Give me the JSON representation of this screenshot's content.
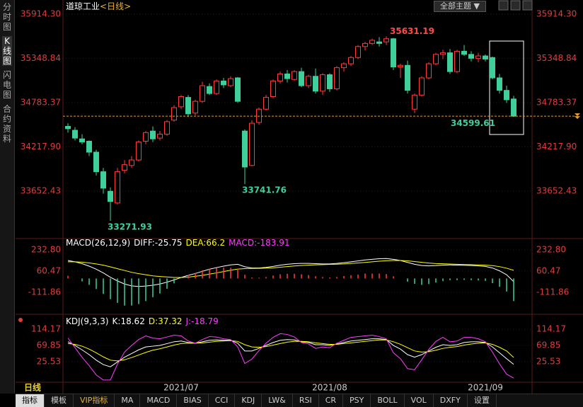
{
  "sidebar": [
    "分时图",
    "K线图",
    "闪电图",
    "合约资料"
  ],
  "header": {
    "symbol": "道琼工业",
    "period": "<日线>",
    "theme_button": "全部主题"
  },
  "footer": {
    "period_tab": "日线",
    "tabs": [
      "指标",
      "模板",
      "VIP指标",
      "MA",
      "MACD",
      "BIAS",
      "CCI",
      "KDJ",
      "LW&",
      "RSI",
      "CR",
      "PSY",
      "BOLL",
      "VOL",
      "DXFY",
      "设置"
    ]
  },
  "chart_data": [
    {
      "type": "candlestick",
      "categories": [
        null,
        null,
        null,
        null,
        null,
        null,
        null,
        null,
        null,
        null,
        null,
        null,
        null,
        null,
        null,
        null,
        "2021/07",
        null,
        null,
        null,
        null,
        null,
        null,
        null,
        null,
        null,
        null,
        null,
        null,
        null,
        null,
        null,
        null,
        null,
        null,
        null,
        null,
        "2021/08",
        null,
        null,
        null,
        null,
        null,
        null,
        null,
        null,
        null,
        null,
        null,
        null,
        null,
        null,
        null,
        null,
        null,
        null,
        null,
        null,
        null,
        "2021/09",
        null,
        null,
        null,
        null
      ],
      "open": [
        34480,
        34430,
        34320,
        34290,
        34150,
        33900,
        33650,
        33500,
        33920,
        33980,
        34050,
        34290,
        34420,
        34330,
        34380,
        34560,
        34730,
        34850,
        34650,
        34800,
        34990,
        34900,
        35060,
        35000,
        35100,
        34420,
        33980,
        34530,
        34700,
        34860,
        35060,
        35150,
        35080,
        35180,
        35000,
        35120,
        34930,
        35140,
        34960,
        35230,
        35280,
        35360,
        35500,
        35540,
        35560,
        35560,
        35600,
        35240,
        35260,
        34700,
        34880,
        35100,
        35280,
        35400,
        35420,
        35180,
        35440,
        35400,
        35350,
        35380,
        35360,
        35100,
        34940,
        34830
      ],
      "high": [
        34520,
        34470,
        34380,
        34300,
        34180,
        33950,
        33700,
        33950,
        34050,
        34100,
        34300,
        34420,
        34480,
        34420,
        34560,
        34750,
        34880,
        34880,
        34820,
        35050,
        35030,
        35080,
        35100,
        35120,
        35110,
        34440,
        34560,
        34720,
        34880,
        35080,
        35180,
        35200,
        35200,
        35230,
        35140,
        35220,
        35160,
        35160,
        35250,
        35300,
        35380,
        35520,
        35560,
        35600,
        35620,
        35631.19,
        35610,
        35280,
        35320,
        34900,
        35120,
        35300,
        35420,
        35460,
        35470,
        35460,
        35520,
        35440,
        35420,
        35400,
        35370,
        35150,
        35000,
        34870
      ],
      "low": [
        34400,
        34300,
        34250,
        34100,
        33850,
        33620,
        33271.93,
        33480,
        33880,
        33950,
        34030,
        34250,
        34280,
        34300,
        34360,
        34540,
        34700,
        34600,
        34620,
        34780,
        34880,
        34880,
        34970,
        34980,
        34780,
        33741.76,
        33970,
        34500,
        34680,
        34840,
        35030,
        35040,
        35060,
        34980,
        34970,
        34900,
        34880,
        34920,
        34940,
        35180,
        35250,
        35340,
        35450,
        35520,
        35500,
        35520,
        35200,
        35100,
        34900,
        34650,
        34860,
        35080,
        35260,
        35340,
        35150,
        35160,
        35380,
        35310,
        35300,
        35310,
        35080,
        34900,
        34780,
        34599.61
      ],
      "close": [
        34450,
        34330,
        34280,
        34150,
        33900,
        33690,
        33520,
        33900,
        33990,
        34050,
        34280,
        34400,
        34320,
        34380,
        34540,
        34720,
        34860,
        34640,
        34800,
        35000,
        34900,
        35060,
        35010,
        35090,
        34800,
        33960,
        34520,
        34700,
        34850,
        35060,
        35150,
        35090,
        35180,
        35000,
        35120,
        34930,
        35140,
        34960,
        35230,
        35280,
        35360,
        35500,
        35540,
        35580,
        35540,
        35600,
        35240,
        35260,
        34940,
        34880,
        35100,
        35280,
        35400,
        35420,
        35180,
        35440,
        35400,
        35350,
        35380,
        35340,
        35100,
        34940,
        34820,
        34610
      ],
      "up_color": "#ff3c3c",
      "down_color": "#3fcf9b",
      "last_price_color": "#e8a030",
      "ylim": [
        33064,
        36050
      ],
      "yticks": [
        {
          "value": 35914.3,
          "label": "35914.30"
        },
        35348.84,
        34783.37,
        {
          "value": 34217.9,
          "label": "34217.90"
        },
        33652.43
      ],
      "grid": true
    },
    {
      "type": "macd",
      "title": "MACD(26,12,9)",
      "series": [
        {
          "name": "DIFF:",
          "color": "#ffffff",
          "values": [
            146,
            135,
            120,
            100,
            75,
            45,
            10,
            -20,
            -45,
            -60,
            -65,
            -62,
            -55,
            -45,
            -30,
            -12,
            8,
            25,
            40,
            58,
            75,
            88,
            100,
            110,
            115,
            95,
            85,
            85,
            90,
            98,
            108,
            115,
            120,
            122,
            122,
            120,
            118,
            118,
            122,
            128,
            135,
            142,
            150,
            155,
            160,
            162,
            155,
            146,
            130,
            115,
            105,
            102,
            104,
            108,
            110,
            108,
            107,
            105,
            102,
            98,
            85,
            62,
            30,
            -25.75
          ]
        },
        {
          "name": "DEA:",
          "color": "#ffff00",
          "values": [
            135,
            135,
            132,
            126,
            118,
            108,
            94,
            79,
            65,
            50,
            39,
            30,
            21,
            16,
            12,
            8,
            8,
            11,
            17,
            25,
            35,
            45,
            56,
            67,
            76,
            80,
            81,
            82,
            84,
            86,
            91,
            96,
            101,
            105,
            108,
            111,
            112,
            114,
            116,
            118,
            122,
            126,
            130,
            135,
            140,
            144,
            146,
            146,
            143,
            137,
            131,
            125,
            121,
            119,
            117,
            115,
            113,
            112,
            110,
            108,
            104,
            96,
            83,
            66.2
          ]
        },
        {
          "name": "MACD:",
          "color": "#ff3cff",
          "style": "bar",
          "values": [
            22,
            0,
            -24,
            -52,
            -86,
            -126,
            -168,
            -198,
            -220,
            -220,
            -208,
            -184,
            -152,
            -122,
            -84,
            -40,
            0,
            28,
            46,
            66,
            80,
            86,
            88,
            86,
            78,
            30,
            8,
            6,
            12,
            24,
            34,
            38,
            38,
            34,
            28,
            18,
            12,
            8,
            12,
            20,
            26,
            32,
            40,
            40,
            40,
            36,
            18,
            0,
            -26,
            -44,
            -52,
            -46,
            -34,
            -22,
            -14,
            -14,
            -12,
            -14,
            -16,
            -20,
            -38,
            -68,
            -106,
            -183.91
          ]
        }
      ],
      "up_color": "#ff3c3c",
      "down_color": "#3fcf9b",
      "ylim": [
        -285,
        278
      ],
      "yticks": [
        {
          "value": 232.8,
          "label": "232.80"
        },
        60.47,
        -111.86
      ],
      "grid": true
    },
    {
      "type": "kdj",
      "title": "KDJ(9,3,3)",
      "series": [
        {
          "name": "K:",
          "color": "#ffffff",
          "values": [
            80,
            70,
            58,
            45,
            30,
            18,
            12,
            25,
            38,
            48,
            58,
            66,
            68,
            70,
            75,
            80,
            82,
            78,
            76,
            80,
            84,
            85,
            84,
            84,
            76,
            55,
            55,
            62,
            70,
            78,
            84,
            86,
            85,
            80,
            78,
            72,
            72,
            70,
            74,
            78,
            82,
            84,
            86,
            88,
            88,
            86,
            70,
            60,
            45,
            38,
            45,
            55,
            65,
            72,
            70,
            72,
            78,
            80,
            80,
            78,
            66,
            50,
            34,
            18.62
          ]
        },
        {
          "name": "D:",
          "color": "#ffff00",
          "values": [
            75,
            73,
            68,
            60,
            50,
            39,
            30,
            28,
            31,
            37,
            44,
            51,
            57,
            61,
            66,
            71,
            75,
            76,
            76,
            77,
            79,
            81,
            82,
            83,
            81,
            72,
            66,
            65,
            67,
            71,
            75,
            79,
            81,
            81,
            80,
            77,
            75,
            73,
            73,
            75,
            77,
            79,
            81,
            83,
            85,
            85,
            80,
            73,
            64,
            55,
            52,
            53,
            57,
            62,
            65,
            67,
            71,
            74,
            76,
            77,
            73,
            65,
            55,
            37.32
          ]
        },
        {
          "name": "J:",
          "color": "#ff3cff",
          "values": [
            90,
            64,
            38,
            15,
            -10,
            -24,
            -24,
            19,
            52,
            70,
            86,
            96,
            90,
            88,
            93,
            98,
            96,
            82,
            76,
            86,
            94,
            93,
            88,
            86,
            66,
            21,
            33,
            56,
            76,
            92,
            102,
            100,
            93,
            78,
            74,
            62,
            66,
            64,
            76,
            84,
            92,
            94,
            96,
            98,
            94,
            88,
            50,
            34,
            7,
            4,
            31,
            59,
            81,
            92,
            80,
            82,
            92,
            92,
            88,
            80,
            52,
            20,
            -8,
            -18.79
          ]
        }
      ],
      "ylim": [
        -30,
        147
      ],
      "yticks": [
        114.17,
        69.85,
        25.53
      ],
      "grid": true
    }
  ]
}
